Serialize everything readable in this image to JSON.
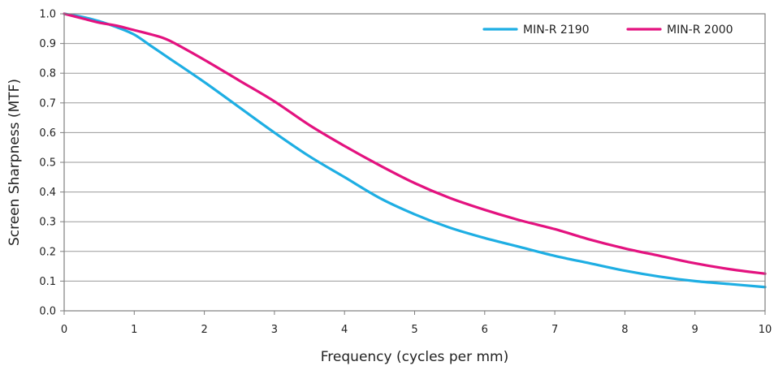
{
  "chart_data": {
    "type": "line",
    "xlabel": "Frequency (cycles per mm)",
    "ylabel": "Screen Sharpness (MTF)",
    "xlim": [
      0,
      10
    ],
    "ylim": [
      0.0,
      1.0
    ],
    "x_ticks": [
      "0",
      "1",
      "2",
      "3",
      "4",
      "5",
      "6",
      "7",
      "8",
      "9",
      "10"
    ],
    "y_ticks": [
      "0.0",
      "0.1",
      "0.2",
      "0.3",
      "0.4",
      "0.5",
      "0.6",
      "0.7",
      "0.8",
      "0.9",
      "1.0"
    ],
    "grid": "horizontal",
    "legend_position": "top-right",
    "series": [
      {
        "name": "MIN-R 2190",
        "color": "#1eaee3",
        "x": [
          0,
          0.25,
          0.5,
          0.75,
          1,
          1.25,
          1.5,
          2,
          2.5,
          3,
          3.5,
          4,
          4.5,
          5,
          5.5,
          6,
          6.5,
          7,
          7.5,
          8,
          8.5,
          9,
          9.5,
          10
        ],
        "y": [
          1.0,
          0.99,
          0.975,
          0.955,
          0.93,
          0.89,
          0.85,
          0.77,
          0.685,
          0.6,
          0.52,
          0.45,
          0.38,
          0.325,
          0.28,
          0.245,
          0.215,
          0.185,
          0.16,
          0.135,
          0.115,
          0.1,
          0.09,
          0.08
        ]
      },
      {
        "name": "MIN-R 2000",
        "color": "#e3127f",
        "x": [
          0,
          0.25,
          0.5,
          0.75,
          1,
          1.25,
          1.5,
          2,
          2.5,
          3,
          3.5,
          4,
          4.5,
          5,
          5.5,
          6,
          6.5,
          7,
          7.5,
          8,
          8.5,
          9,
          9.5,
          10
        ],
        "y": [
          1.0,
          0.985,
          0.97,
          0.96,
          0.945,
          0.93,
          0.91,
          0.845,
          0.775,
          0.705,
          0.625,
          0.555,
          0.49,
          0.43,
          0.38,
          0.34,
          0.305,
          0.275,
          0.24,
          0.21,
          0.185,
          0.16,
          0.14,
          0.125
        ]
      }
    ]
  }
}
